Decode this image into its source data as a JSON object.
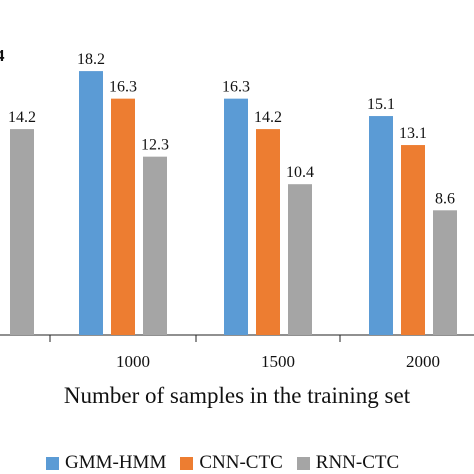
{
  "chart_data": {
    "type": "bar",
    "categories": [
      "",
      "1000",
      "1500",
      "2000"
    ],
    "series": [
      {
        "name": "GMM-HMM",
        "color": "#5B9BD5",
        "values": [
          null,
          18.2,
          16.3,
          15.1
        ]
      },
      {
        "name": "CNN-CTC",
        "color": "#ED7D31",
        "values": [
          null,
          16.3,
          14.2,
          13.1
        ]
      },
      {
        "name": "RNN-CTC",
        "color": "#A5A5A5",
        "values": [
          14.2,
          12.3,
          10.4,
          8.6
        ]
      }
    ],
    "xlabel": "Number of samples in the training set",
    "ylabel": "",
    "ylim": [
      0,
      20
    ],
    "grid": false,
    "legend_position": "bottom",
    "partial_label": "4"
  }
}
